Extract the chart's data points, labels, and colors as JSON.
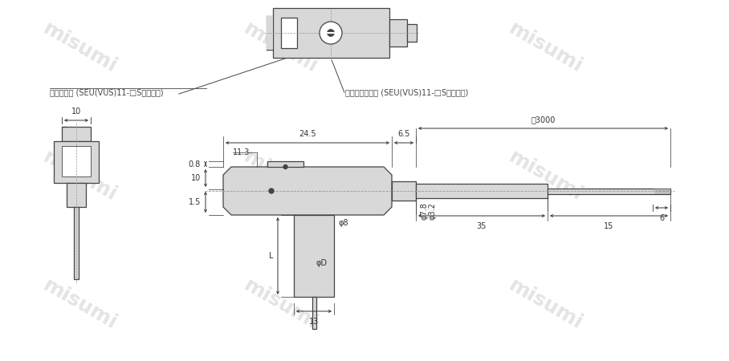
{
  "bg_color": "#ffffff",
  "line_color": "#444444",
  "fill_color": "#c8c8c8",
  "light_fill": "#d8d8d8",
  "label1": "動作確認灯 (SEU(VUS)11-□Sのみ付属)",
  "label2": "圧力設定トリマ (SEU(VUS)11-□Sのみ付属)",
  "dim_24_5": "24.5",
  "dim_6_5": "6.5",
  "dim_approx3000": "約3000",
  "dim_35": "35",
  "dim_15": "15",
  "dim_6": "6",
  "dim_0_8": "0.8",
  "dim_11_3": "11.3",
  "dim_10v": "10",
  "dim_1_5": "1.5",
  "dim_phi8": "φ8",
  "dim_phiD": "φD",
  "dim_13": "13",
  "dim_L": "L",
  "dim_phi7_8": "φ7.8",
  "dim_phi3_2": "φ3.2",
  "dim_10h": "10",
  "watermark_text": "misumi"
}
